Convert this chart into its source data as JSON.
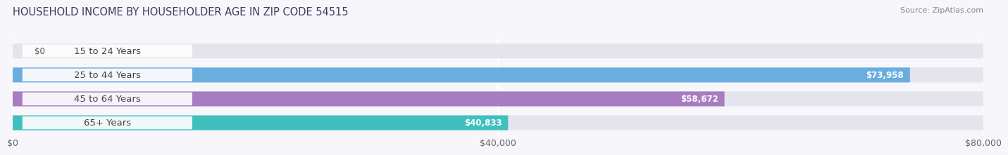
{
  "title": "HOUSEHOLD INCOME BY HOUSEHOLDER AGE IN ZIP CODE 54515",
  "source": "Source: ZipAtlas.com",
  "categories": [
    "15 to 24 Years",
    "25 to 44 Years",
    "45 to 64 Years",
    "65+ Years"
  ],
  "values": [
    0,
    73958,
    58672,
    40833
  ],
  "bar_colors": [
    "#f08080",
    "#6aaee0",
    "#a87cc0",
    "#40bfbf"
  ],
  "bar_bg_color": "#e4e4ec",
  "value_labels": [
    "$0",
    "$73,958",
    "$58,672",
    "$40,833"
  ],
  "xlim": [
    0,
    80000
  ],
  "xticks": [
    0,
    40000,
    80000
  ],
  "xtick_labels": [
    "$0",
    "$40,000",
    "$80,000"
  ],
  "background_color": "#f7f7fb",
  "title_fontsize": 10.5,
  "source_fontsize": 8,
  "label_fontsize": 9.5,
  "value_fontsize": 8.5,
  "tick_fontsize": 9
}
